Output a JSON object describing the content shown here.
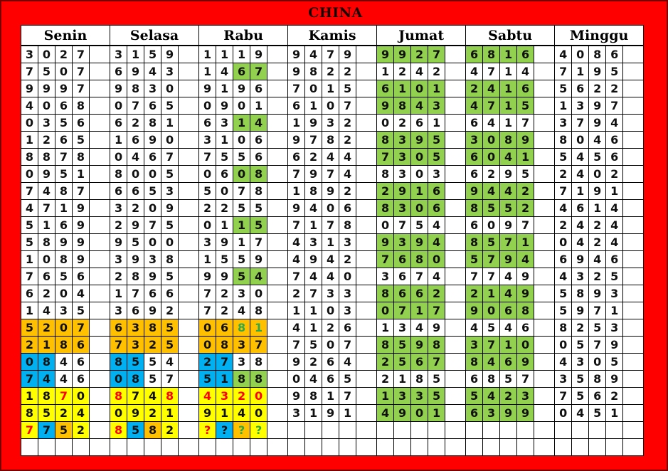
{
  "title": "CHINA",
  "days": [
    "Senin",
    "Selasa",
    "Rabu",
    "Kamis",
    "Jumat",
    "Sabtu",
    "Minggu"
  ],
  "colors": {
    "frame": "#FF0000",
    "G": "#92D050",
    "O": "#FFC000",
    "B": "#00B0F0",
    "Y": "#FFFF00",
    "r": "#FF0000",
    "g": "#2EA84A"
  },
  "rows": [
    [
      "3027",
      "3159",
      "1119",
      "9479",
      {
        "v": "9927",
        "bg": "GGGG"
      },
      {
        "v": "6816",
        "bg": "GGGG"
      },
      "4086"
    ],
    [
      "7507",
      "6943",
      {
        "v": "1467",
        "bg": "..GG"
      },
      "9822",
      "1242",
      "4714",
      "7195"
    ],
    [
      "9997",
      "9830",
      "9196",
      "7015",
      {
        "v": "6101",
        "bg": "GGGG"
      },
      {
        "v": "2416",
        "bg": "GGGG"
      },
      "5622"
    ],
    [
      "4068",
      "0765",
      "0901",
      "6107",
      {
        "v": "9843",
        "bg": "GGGG"
      },
      {
        "v": "4715",
        "bg": "GGGG"
      },
      "1397"
    ],
    [
      "0356",
      "6281",
      {
        "v": "6314",
        "bg": "..GG"
      },
      "1932",
      "0261",
      "6417",
      "3794"
    ],
    [
      "1265",
      "1690",
      "3106",
      "9782",
      {
        "v": "8395",
        "bg": "GGGG"
      },
      {
        "v": "3089",
        "bg": "GGGG"
      },
      "8046"
    ],
    [
      "8878",
      "0467",
      "7556",
      "6244",
      {
        "v": "7305",
        "bg": "GGGG"
      },
      {
        "v": "6041",
        "bg": "GGGG"
      },
      "5456"
    ],
    [
      "0951",
      "8005",
      {
        "v": "0608",
        "bg": "..GG"
      },
      "7974",
      "8303",
      "6295",
      "2402"
    ],
    [
      "7487",
      "6653",
      "5078",
      "1892",
      {
        "v": "2916",
        "bg": "GGGG"
      },
      {
        "v": "9442",
        "bg": "GGGG"
      },
      "7191"
    ],
    [
      "4719",
      "3209",
      "2255",
      "9406",
      {
        "v": "8306",
        "bg": "GGGG"
      },
      {
        "v": "8552",
        "bg": "GGGG"
      },
      "4614"
    ],
    [
      "5169",
      "2975",
      {
        "v": "0115",
        "bg": "..GG"
      },
      "7178",
      "0754",
      "6097",
      "2424"
    ],
    [
      "5899",
      "9500",
      "3917",
      "4313",
      {
        "v": "9394",
        "bg": "GGGG"
      },
      {
        "v": "8571",
        "bg": "GGGG"
      },
      "0424"
    ],
    [
      "1089",
      "3938",
      "1559",
      "4942",
      {
        "v": "7680",
        "bg": "GGGG"
      },
      {
        "v": "5794",
        "bg": "GGGG"
      },
      "6946"
    ],
    [
      "7656",
      "2895",
      {
        "v": "9954",
        "bg": "..GG"
      },
      "7440",
      "3674",
      "7749",
      "4325"
    ],
    [
      "6204",
      "1766",
      "7230",
      "2733",
      {
        "v": "8662",
        "bg": "GGGG"
      },
      {
        "v": "2149",
        "bg": "GGGG"
      },
      "5893"
    ],
    [
      "1435",
      "3692",
      "7248",
      "1103",
      {
        "v": "0717",
        "bg": "GGGG"
      },
      {
        "v": "9068",
        "bg": "GGGG"
      },
      "5971"
    ],
    [
      {
        "v": "5207",
        "bg": "OOOO"
      },
      {
        "v": "6385",
        "bg": "OOOO"
      },
      {
        "v": "0681",
        "bg": "OOOO",
        "fg": "..gg"
      },
      "4126",
      "1349",
      "4546",
      "8253"
    ],
    [
      {
        "v": "2186",
        "bg": "OOOO"
      },
      {
        "v": "7325",
        "bg": "OOOO"
      },
      {
        "v": "0837",
        "bg": "OOOO"
      },
      "7507",
      {
        "v": "8598",
        "bg": "GGGG"
      },
      {
        "v": "3710",
        "bg": "GGGG"
      },
      "0579"
    ],
    [
      {
        "v": "0846",
        "bg": "BB.."
      },
      {
        "v": "8554",
        "bg": "BB.."
      },
      {
        "v": "2738",
        "bg": "BB.."
      },
      "9264",
      {
        "v": "2567",
        "bg": "GGGG"
      },
      {
        "v": "8469",
        "bg": "GGGG"
      },
      "4305"
    ],
    [
      {
        "v": "7446",
        "bg": "BB.."
      },
      {
        "v": "0857",
        "bg": "BB.."
      },
      {
        "v": "5188",
        "bg": "BBGG"
      },
      "0465",
      "2185",
      "6857",
      "3589"
    ],
    [
      {
        "v": "1870",
        "bg": "YYYY",
        "fg": "..r."
      },
      {
        "v": "8748",
        "bg": "YYYY",
        "fg": "r..r"
      },
      {
        "v": "4320",
        "bg": "YYYY",
        "fg": "rrrr"
      },
      "9817",
      {
        "v": "1335",
        "bg": "GGGG"
      },
      {
        "v": "5423",
        "bg": "GGGG"
      },
      "7562"
    ],
    [
      {
        "v": "8524",
        "bg": "YYYY"
      },
      {
        "v": "0921",
        "bg": "YYYY"
      },
      {
        "v": "9140",
        "bg": "YYYY"
      },
      "3191",
      {
        "v": "4901",
        "bg": "GGGG"
      },
      {
        "v": "6399",
        "bg": "GGGG"
      },
      "0451"
    ],
    [
      {
        "v": "7752",
        "bg": "YBOY",
        "fg": "r..."
      },
      {
        "v": "8582",
        "bg": "YBOY",
        "fg": "r..."
      },
      {
        "v": "????",
        "bg": "YBOY",
        "fg": "r.gg"
      },
      "",
      "",
      "",
      ""
    ],
    [
      "",
      "",
      "",
      "",
      "",
      "",
      ""
    ]
  ]
}
